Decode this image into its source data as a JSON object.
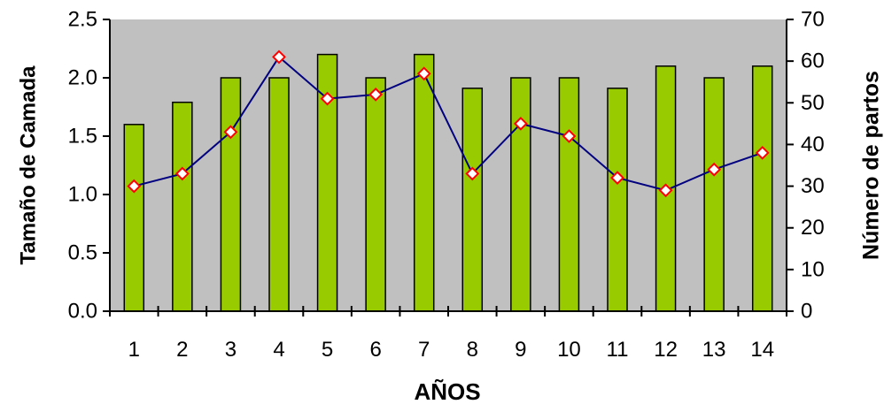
{
  "chart_data": {
    "type": "bar",
    "xlabel": "AÑOS",
    "ylabel": "Tamaño de Camada",
    "y2label": "Número de partos",
    "categories": [
      "1",
      "2",
      "3",
      "4",
      "5",
      "6",
      "7",
      "8",
      "9",
      "10",
      "11",
      "12",
      "13",
      "14"
    ],
    "ylim": [
      0,
      2.5
    ],
    "yticks": [
      "0.0",
      "0.5",
      "1.0",
      "1.5",
      "2.0",
      "2.5"
    ],
    "y2lim": [
      0,
      70
    ],
    "y2ticks": [
      "0",
      "10",
      "20",
      "30",
      "40",
      "50",
      "60",
      "70"
    ],
    "series": [
      {
        "axis": "left",
        "kind": "bar",
        "values": [
          1.6,
          1.79,
          2.0,
          2.0,
          2.2,
          2.0,
          2.2,
          1.91,
          2.0,
          2.0,
          1.91,
          2.1,
          2.0,
          2.1
        ]
      },
      {
        "axis": "right",
        "kind": "line",
        "values": [
          30,
          33,
          43,
          61,
          51,
          52,
          57,
          33,
          45,
          42,
          32,
          29,
          34,
          38
        ]
      }
    ],
    "grid": false,
    "legend": "none",
    "colors": {
      "plot_background": "#c0c0c0",
      "bar_fill": "#99cc00",
      "bar_stroke": "#000000",
      "line": "#000080",
      "marker_fill": "#ffffff",
      "marker_stroke": "#ff0000"
    }
  }
}
